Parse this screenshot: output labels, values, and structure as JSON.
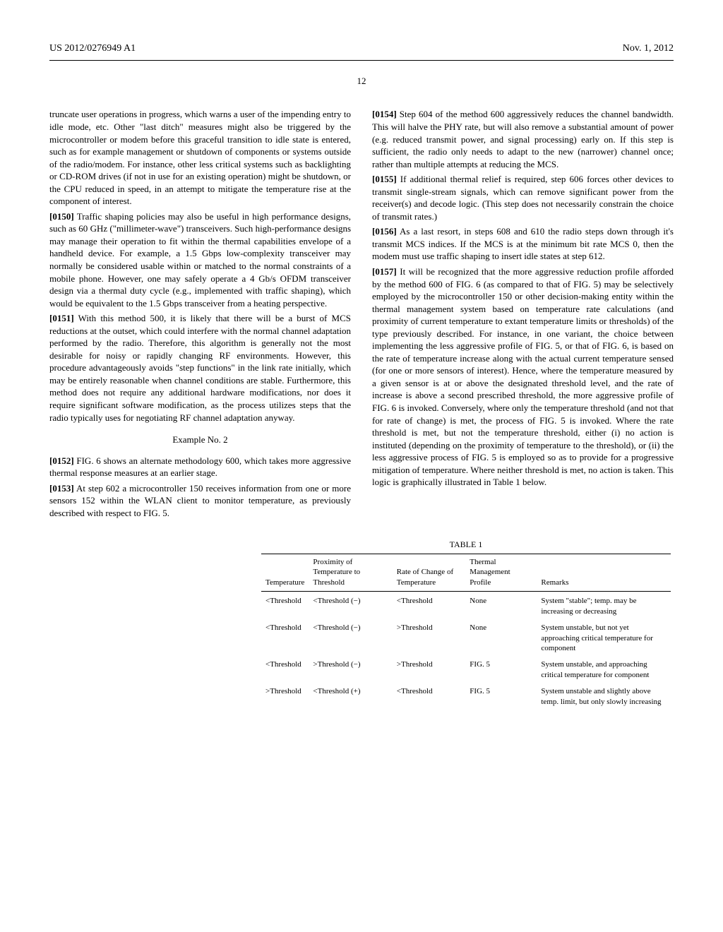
{
  "header": {
    "publication_number": "US 2012/0276949 A1",
    "date": "Nov. 1, 2012"
  },
  "page_number": "12",
  "left_column": {
    "p149_cont": "truncate user operations in progress, which warns a user of the impending entry to idle mode, etc. Other \"last ditch\" measures might also be triggered by the microcontroller or modem before this graceful transition to idle state is entered, such as for example management or shutdown of components or systems outside of the radio/modem. For instance, other less critical systems such as backlighting or CD-ROM drives (if not in use for an existing operation) might be shutdown, or the CPU reduced in speed, in an attempt to mitigate the temperature rise at the component of interest.",
    "p150_num": "[0150]",
    "p150": "   Traffic shaping policies may also be useful in high performance designs, such as 60 GHz (\"millimeter-wave\") transceivers. Such high-performance designs may manage their operation to fit within the thermal capabilities envelope of a handheld device. For example, a 1.5 Gbps low-complexity transceiver may normally be considered usable within or matched to the normal constraints of a mobile phone. However, one may safely operate a 4 Gb/s OFDM transceiver design via a thermal duty cycle (e.g., implemented with traffic shaping), which would be equivalent to the 1.5 Gbps transceiver from a heating perspective.",
    "p151_num": "[0151]",
    "p151": "   With this method 500, it is likely that there will be a burst of MCS reductions at the outset, which could interfere with the normal channel adaptation performed by the radio. Therefore, this algorithm is generally not the most desirable for noisy or rapidly changing RF environments. However, this procedure advantageously avoids \"step functions\" in the link rate initially, which may be entirely reasonable when channel conditions are stable. Furthermore, this method does not require any additional hardware modifications, nor does it require significant software modification, as the process utilizes steps that the radio typically uses for negotiating RF channel adaptation anyway.",
    "example_heading": "Example No. 2",
    "p152_num": "[0152]",
    "p152": "   FIG. 6 shows an alternate methodology 600, which takes more aggressive thermal response measures at an earlier stage.",
    "p153_num": "[0153]",
    "p153": "   At step 602 a microcontroller 150 receives information from one or more sensors 152 within the WLAN client to monitor temperature, as previously described with respect to FIG. 5."
  },
  "right_column": {
    "p154_num": "[0154]",
    "p154": "   Step 604 of the method 600 aggressively reduces the channel bandwidth. This will halve the PHY rate, but will also remove a substantial amount of power (e.g. reduced transmit power, and signal processing) early on. If this step is sufficient, the radio only needs to adapt to the new (narrower) channel once; rather than multiple attempts at reducing the MCS.",
    "p155_num": "[0155]",
    "p155": "   If additional thermal relief is required, step 606 forces other devices to transmit single-stream signals, which can remove significant power from the receiver(s) and decode logic. (This step does not necessarily constrain the choice of transmit rates.)",
    "p156_num": "[0156]",
    "p156": "   As a last resort, in steps 608 and 610 the radio steps down through it's transmit MCS indices. If the MCS is at the minimum bit rate MCS 0, then the modem must use traffic shaping to insert idle states at step 612.",
    "p157_num": "[0157]",
    "p157": "   It will be recognized that the more aggressive reduction profile afforded by the method 600 of FIG. 6 (as compared to that of FIG. 5) may be selectively employed by the microcontroller 150 or other decision-making entity within the thermal management system based on temperature rate calculations (and proximity of current temperature to extant temperature limits or thresholds) of the type previously described. For instance, in one variant, the choice between implementing the less aggressive profile of FIG. 5, or that of FIG. 6, is based on the rate of temperature increase along with the actual current temperature sensed (for one or more sensors of interest). Hence, where the temperature measured by a given sensor is at or above the designated threshold level, and the rate of increase is above a second prescribed threshold, the more aggressive profile of FIG. 6 is invoked. Conversely, where only the temperature threshold (and not that for rate of change) is met, the process of FIG. 5 is invoked. Where the rate threshold is met, but not the temperature threshold, either (i) no action is instituted (depending on the proximity of temperature to the threshold), or (ii) the less aggressive process of FIG. 5 is employed so as to provide for a progressive mitigation of temperature. Where neither threshold is met, no action is taken. This logic is graphically illustrated in Table 1 below."
  },
  "table": {
    "caption": "TABLE 1",
    "columns": [
      "Temperature",
      "Proximity of Temperature to Threshold",
      "Rate of Change of Temperature",
      "Thermal Management Profile",
      "Remarks"
    ],
    "rows": [
      [
        "<Threshold",
        "<Threshold (−)",
        "<Threshold",
        "None",
        "System \"stable\"; temp. may be increasing or decreasing"
      ],
      [
        "<Threshold",
        "<Threshold (−)",
        ">Threshold",
        "None",
        "System unstable, but not yet approaching critical temperature for component"
      ],
      [
        "<Threshold",
        ">Threshold (−)",
        ">Threshold",
        "FIG. 5",
        "System unstable, and approaching critical temperature for component"
      ],
      [
        ">Threshold",
        "<Threshold (+)",
        "<Threshold",
        "FIG. 5",
        "System unstable and slightly above temp. limit, but only slowly increasing"
      ]
    ]
  }
}
